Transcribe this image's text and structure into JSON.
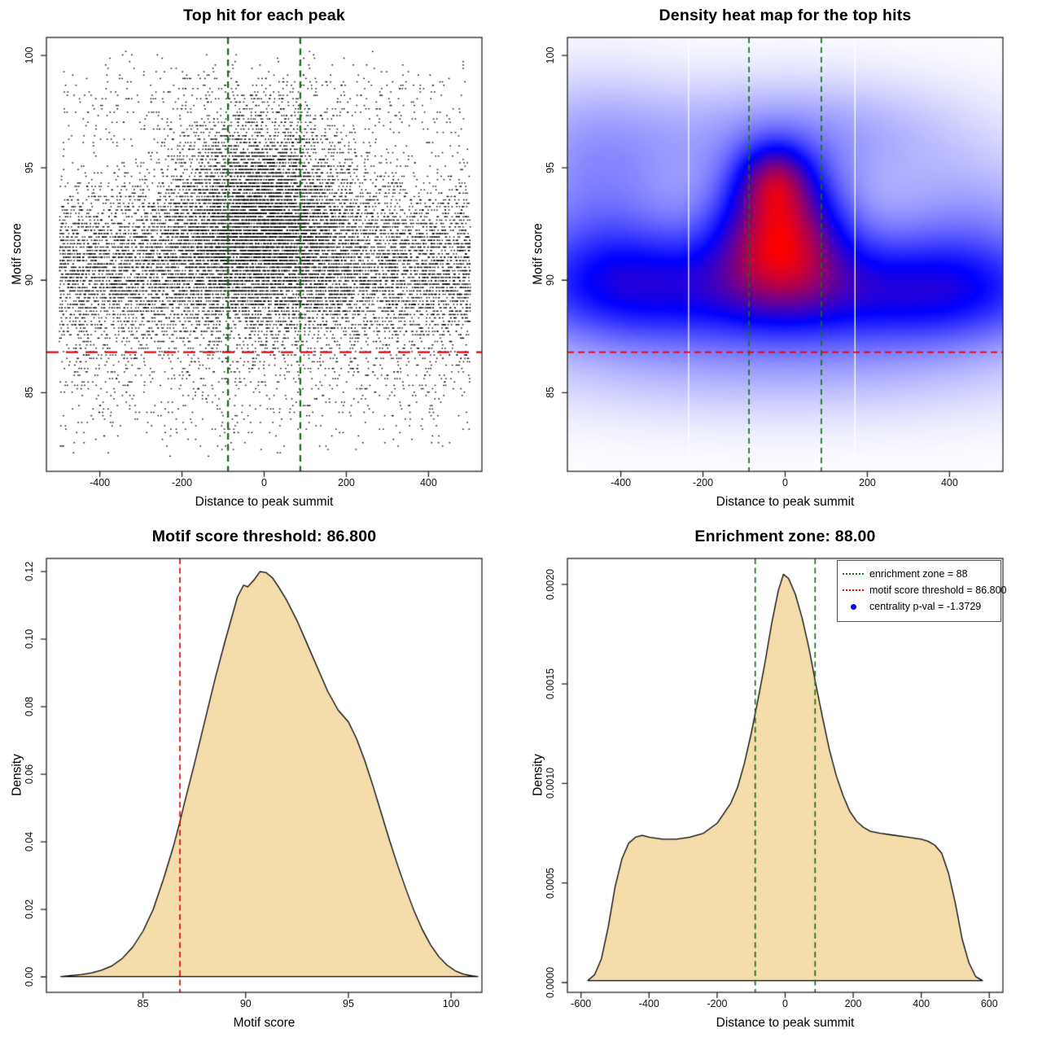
{
  "colors": {
    "red_line": "#e60000",
    "green_line": "#166f16",
    "wheat_fill": "#f4dcab",
    "curve_stroke": "#000000",
    "point_color": "#000000",
    "box_stroke": "#222222",
    "legend_blue": "#0000ee",
    "white_artifact": "#ffffff",
    "heat_ramp": [
      "#ffffff",
      "#0000ff",
      "#ff0000"
    ]
  },
  "chart_data": [
    {
      "id": "top-hit-scatter",
      "type": "scatter",
      "title": "Top hit for each peak",
      "xlabel": "Distance to peak summit",
      "ylabel": "Motif score",
      "xlim": [
        -530,
        530
      ],
      "ylim": [
        81.5,
        100.8
      ],
      "xticks": [
        -400,
        -200,
        0,
        200,
        400
      ],
      "yticks": [
        85,
        90,
        95,
        100
      ],
      "ytick_labels": [
        "85",
        "90",
        "95",
        "100"
      ],
      "threshold_line_y": 86.8,
      "zone_lines_x": [
        -88,
        88
      ],
      "generator": {
        "seed": 42,
        "quant": 0.15,
        "y_min": 82.2,
        "y_max": 100.2,
        "components": [
          {
            "n": 9500,
            "x_dist": "uniform",
            "x_min": -500,
            "x_max": 500,
            "y_mean": 90.6,
            "y_sd": 1.9
          },
          {
            "n": 6200,
            "x_dist": "normal",
            "x_mean": -10,
            "x_sd": 115,
            "y_mean": 93.1,
            "y_sd": 2.2
          },
          {
            "n": 700,
            "x_dist": "uniform",
            "x_min": -500,
            "x_max": 500,
            "y_mean": 85.2,
            "y_sd": 1.6
          },
          {
            "n": 480,
            "x_dist": "uniform",
            "x_min": -490,
            "x_max": 490,
            "y_mean": 97.9,
            "y_sd": 1.1
          }
        ]
      }
    },
    {
      "id": "density-heatmap",
      "type": "heatmap",
      "title": "Density heat map for the top hits",
      "xlabel": "Distance to peak summit",
      "ylabel": "Motif score",
      "xlim": [
        -530,
        530
      ],
      "ylim": [
        81.5,
        100.8
      ],
      "xticks": [
        -400,
        -200,
        0,
        200,
        400
      ],
      "yticks": [
        85,
        90,
        95,
        100
      ],
      "ytick_labels": [
        "85",
        "90",
        "95",
        "100"
      ],
      "threshold_line_y": 86.8,
      "zone_lines_x": [
        -88,
        88
      ],
      "white_lines_x": [
        -235,
        170
      ],
      "kernels": [
        {
          "w": 1.2,
          "mx": -25,
          "sx": 58,
          "my": 94.5,
          "sy": 1.1
        },
        {
          "w": 2.2,
          "mx": -15,
          "sx": 100,
          "my": 92.6,
          "sy": 1.9
        },
        {
          "w": 1.1,
          "mx": 0,
          "sx": 135,
          "my": 90.7,
          "sy": 1.7
        },
        {
          "w": 0.9,
          "mx": -390,
          "sx": 170,
          "my": 90.1,
          "sy": 1.7
        },
        {
          "w": 0.85,
          "mx": 390,
          "sx": 180,
          "my": 89.7,
          "sy": 1.6
        },
        {
          "w": 1.0,
          "mx": 0,
          "sx": 430,
          "my": 89.2,
          "sy": 1.6
        },
        {
          "w": 0.55,
          "mx": -450,
          "sx": 160,
          "my": 92.8,
          "sy": 2.3
        },
        {
          "w": 0.5,
          "mx": 450,
          "sx": 180,
          "my": 92.3,
          "sy": 2.1
        },
        {
          "w": 0.5,
          "mx": 30,
          "sx": 270,
          "my": 96.4,
          "sy": 1.7
        },
        {
          "w": 0.35,
          "mx": 0,
          "sx": 470,
          "my": 86.3,
          "sy": 1.7
        },
        {
          "w": 0.3,
          "mx": -480,
          "sx": 150,
          "my": 96.5,
          "sy": 2.0
        }
      ]
    },
    {
      "id": "score-density",
      "type": "density",
      "title": "Motif score threshold: 86.800",
      "xlabel": "Motif score",
      "ylabel": "Density",
      "xlim": [
        80.3,
        101.5
      ],
      "ylim": [
        -0.00458,
        0.1239
      ],
      "xticks": [
        85,
        90,
        95,
        100
      ],
      "yticks": [
        0,
        0.02,
        0.04,
        0.06,
        0.08,
        0.1,
        0.12
      ],
      "ytick_labels": [
        "0.00",
        "0.02",
        "0.04",
        "0.06",
        "0.08",
        "0.10",
        "0.12"
      ],
      "vlines": [
        {
          "x": 86.8,
          "color": "red_line"
        }
      ],
      "curve": [
        [
          81.0,
          0.0001
        ],
        [
          81.5,
          0.0004
        ],
        [
          82.0,
          0.0007
        ],
        [
          82.5,
          0.0012
        ],
        [
          83.0,
          0.002
        ],
        [
          83.5,
          0.0033
        ],
        [
          84.0,
          0.0055
        ],
        [
          84.5,
          0.0088
        ],
        [
          85.0,
          0.0135
        ],
        [
          85.5,
          0.02
        ],
        [
          86.0,
          0.029
        ],
        [
          86.5,
          0.039
        ],
        [
          86.8,
          0.046
        ],
        [
          87.0,
          0.051
        ],
        [
          87.5,
          0.063
        ],
        [
          88.0,
          0.0755
        ],
        [
          88.5,
          0.088
        ],
        [
          89.0,
          0.0995
        ],
        [
          89.3,
          0.106
        ],
        [
          89.6,
          0.1125
        ],
        [
          89.9,
          0.116
        ],
        [
          90.1,
          0.1155
        ],
        [
          90.4,
          0.1175
        ],
        [
          90.7,
          0.12
        ],
        [
          91.0,
          0.1197
        ],
        [
          91.3,
          0.1182
        ],
        [
          91.6,
          0.1155
        ],
        [
          92.0,
          0.1115
        ],
        [
          92.5,
          0.1055
        ],
        [
          93.0,
          0.0985
        ],
        [
          93.5,
          0.0915
        ],
        [
          94.0,
          0.0845
        ],
        [
          94.5,
          0.079
        ],
        [
          95.0,
          0.0755
        ],
        [
          95.4,
          0.0705
        ],
        [
          95.8,
          0.064
        ],
        [
          96.2,
          0.0565
        ],
        [
          96.6,
          0.0485
        ],
        [
          97.0,
          0.0405
        ],
        [
          97.4,
          0.033
        ],
        [
          97.8,
          0.026
        ],
        [
          98.2,
          0.0195
        ],
        [
          98.6,
          0.014
        ],
        [
          99.0,
          0.0095
        ],
        [
          99.4,
          0.006
        ],
        [
          99.8,
          0.0035
        ],
        [
          100.2,
          0.0018
        ],
        [
          100.6,
          0.0008
        ],
        [
          101.0,
          0.0003
        ],
        [
          101.3,
          0.0001
        ]
      ]
    },
    {
      "id": "distance-density",
      "type": "density",
      "title": "Enrichment zone: 88.00",
      "xlabel": "Distance to peak summit",
      "ylabel": "Density",
      "xlim": [
        -640,
        640
      ],
      "ylim": [
        -4.9e-05,
        0.00213
      ],
      "xticks": [
        -600,
        -400,
        -200,
        0,
        200,
        400,
        600
      ],
      "yticks": [
        0,
        0.0005,
        0.001,
        0.0015,
        0.002
      ],
      "ytick_labels": [
        "0.0000",
        "0.0005",
        "0.0010",
        "0.0015",
        "0.0020"
      ],
      "vlines": [
        {
          "x": -88,
          "color": "green_line"
        },
        {
          "x": 88,
          "color": "green_line"
        }
      ],
      "curve": [
        [
          -580,
          1e-05
        ],
        [
          -560,
          4e-05
        ],
        [
          -540,
          0.00012
        ],
        [
          -520,
          0.00028
        ],
        [
          -500,
          0.00048
        ],
        [
          -480,
          0.00062
        ],
        [
          -460,
          0.0007
        ],
        [
          -440,
          0.00073
        ],
        [
          -420,
          0.00074
        ],
        [
          -400,
          0.00073
        ],
        [
          -360,
          0.00072
        ],
        [
          -320,
          0.00072
        ],
        [
          -280,
          0.00073
        ],
        [
          -240,
          0.00075
        ],
        [
          -200,
          0.0008
        ],
        [
          -160,
          0.0009
        ],
        [
          -140,
          0.00098
        ],
        [
          -120,
          0.0011
        ],
        [
          -100,
          0.00125
        ],
        [
          -80,
          0.00142
        ],
        [
          -60,
          0.0016
        ],
        [
          -40,
          0.0018
        ],
        [
          -20,
          0.00197
        ],
        [
          -5,
          0.00205
        ],
        [
          10,
          0.00203
        ],
        [
          30,
          0.00195
        ],
        [
          50,
          0.00183
        ],
        [
          70,
          0.00168
        ],
        [
          90,
          0.0015
        ],
        [
          110,
          0.00133
        ],
        [
          130,
          0.00117
        ],
        [
          150,
          0.00104
        ],
        [
          170,
          0.00094
        ],
        [
          190,
          0.00086
        ],
        [
          210,
          0.00081
        ],
        [
          230,
          0.00078
        ],
        [
          250,
          0.00076
        ],
        [
          280,
          0.00075
        ],
        [
          320,
          0.00074
        ],
        [
          360,
          0.00073
        ],
        [
          400,
          0.00072
        ],
        [
          420,
          0.00071
        ],
        [
          440,
          0.00069
        ],
        [
          460,
          0.00065
        ],
        [
          480,
          0.00055
        ],
        [
          500,
          0.0004
        ],
        [
          520,
          0.00022
        ],
        [
          540,
          0.0001
        ],
        [
          560,
          3e-05
        ],
        [
          580,
          1e-05
        ]
      ],
      "legend": {
        "items": [
          {
            "swatch": "dotted-line",
            "color": "green_line",
            "label": "enrichment zone = 88"
          },
          {
            "swatch": "dotted-line",
            "color": "red_line",
            "label": "motif score threshold = 86.800"
          },
          {
            "swatch": "dot",
            "color": "legend_blue",
            "label": "centrality p-val = -1.3729"
          }
        ]
      }
    }
  ]
}
